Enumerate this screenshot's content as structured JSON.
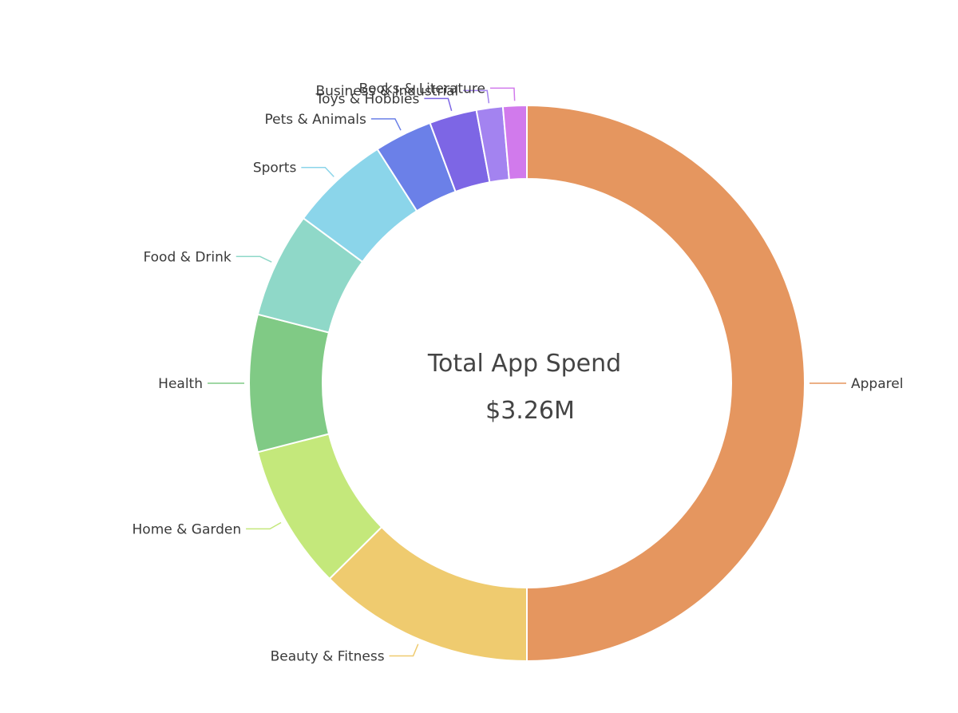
{
  "chart_data": {
    "type": "pie",
    "donut": true,
    "center_title": "Total App Spend",
    "center_value": "$3.26M",
    "total": 3.26,
    "unit": "$M",
    "slices": [
      {
        "label": "Apparel",
        "value": 1.63,
        "color": "#E5965F"
      },
      {
        "label": "Beauty & Fitness",
        "value": 0.41,
        "color": "#EFCB6F"
      },
      {
        "label": "Home & Garden",
        "value": 0.275,
        "color": "#C4E87B"
      },
      {
        "label": "Health",
        "value": 0.26,
        "color": "#80CA85"
      },
      {
        "label": "Food & Drink",
        "value": 0.2,
        "color": "#8FD8C8"
      },
      {
        "label": "Sports",
        "value": 0.19,
        "color": "#8BD5EA"
      },
      {
        "label": "Pets & Animals",
        "value": 0.11,
        "color": "#6B80E8"
      },
      {
        "label": "Toys & Hobbies",
        "value": 0.09,
        "color": "#7D66E5"
      },
      {
        "label": "Business & Industrial",
        "value": 0.05,
        "color": "#A383F0"
      },
      {
        "label": "Books & Literature",
        "value": 0.045,
        "color": "#D17AEC"
      }
    ]
  }
}
